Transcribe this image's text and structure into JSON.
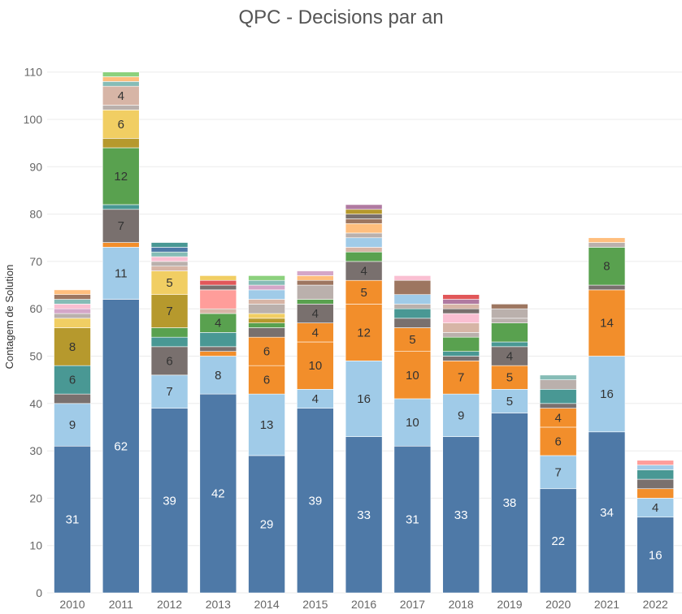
{
  "chart_data": {
    "type": "bar",
    "stacked": true,
    "title": "QPC - Decisions par an",
    "xlabel": "",
    "ylabel": "Contagem de Solution",
    "ylim": [
      0,
      112
    ],
    "yticks": [
      0,
      10,
      20,
      30,
      40,
      50,
      60,
      70,
      80,
      90,
      100,
      110
    ],
    "grid": true,
    "legend": "none",
    "categories": [
      "2010",
      "2011",
      "2012",
      "2013",
      "2014",
      "2015",
      "2016",
      "2017",
      "2018",
      "2019",
      "2020",
      "2021",
      "2022"
    ],
    "stacks": [
      [
        {
          "value": 31,
          "color": "#4e79a7",
          "label": "31"
        },
        {
          "value": 9,
          "color": "#a0cbe8",
          "label": "9"
        },
        {
          "value": 2,
          "color": "#79706e"
        },
        {
          "value": 6,
          "color": "#499894",
          "label": "6"
        },
        {
          "value": 8,
          "color": "#b6992d",
          "label": "8"
        },
        {
          "value": 2,
          "color": "#f1ce63"
        },
        {
          "value": 1,
          "color": "#bab0ac"
        },
        {
          "value": 1,
          "color": "#d4a6c8"
        },
        {
          "value": 1,
          "color": "#fabfd2"
        },
        {
          "value": 1,
          "color": "#86bcb6"
        },
        {
          "value": 1,
          "color": "#9d7660"
        },
        {
          "value": 1,
          "color": "#ffbe7d"
        }
      ],
      [
        {
          "value": 62,
          "color": "#4e79a7",
          "label": "62"
        },
        {
          "value": 11,
          "color": "#a0cbe8",
          "label": "11"
        },
        {
          "value": 1,
          "color": "#f28e2b"
        },
        {
          "value": 7,
          "color": "#79706e",
          "label": "7"
        },
        {
          "value": 1,
          "color": "#499894"
        },
        {
          "value": 12,
          "color": "#59a14f",
          "label": "12"
        },
        {
          "value": 2,
          "color": "#b6992d"
        },
        {
          "value": 6,
          "color": "#f1ce63",
          "label": "6"
        },
        {
          "value": 1,
          "color": "#bab0ac"
        },
        {
          "value": 4,
          "color": "#d7b5a6",
          "label": "4"
        },
        {
          "value": 1,
          "color": "#86bcb6"
        },
        {
          "value": 1,
          "color": "#ffbe7d"
        },
        {
          "value": 1,
          "color": "#8cd17d"
        }
      ],
      [
        {
          "value": 39,
          "color": "#4e79a7",
          "label": "39"
        },
        {
          "value": 7,
          "color": "#a0cbe8",
          "label": "7"
        },
        {
          "value": 6,
          "color": "#79706e",
          "label": "6"
        },
        {
          "value": 2,
          "color": "#499894"
        },
        {
          "value": 2,
          "color": "#59a14f"
        },
        {
          "value": 7,
          "color": "#b6992d",
          "label": "7"
        },
        {
          "value": 5,
          "color": "#f1ce63",
          "label": "5"
        },
        {
          "value": 1,
          "color": "#d7b5a6"
        },
        {
          "value": 1,
          "color": "#bab0ac"
        },
        {
          "value": 1,
          "color": "#fabfd2"
        },
        {
          "value": 1,
          "color": "#86bcb6"
        },
        {
          "value": 1,
          "color": "#4e79a7"
        },
        {
          "value": 1,
          "color": "#499894"
        }
      ],
      [
        {
          "value": 42,
          "color": "#4e79a7",
          "label": "42"
        },
        {
          "value": 8,
          "color": "#a0cbe8",
          "label": "8"
        },
        {
          "value": 1,
          "color": "#f28e2b"
        },
        {
          "value": 1,
          "color": "#79706e"
        },
        {
          "value": 3,
          "color": "#499894"
        },
        {
          "value": 4,
          "color": "#59a14f",
          "label": "4"
        },
        {
          "value": 1,
          "color": "#d7b5a6"
        },
        {
          "value": 4,
          "color": "#ff9d9a"
        },
        {
          "value": 1,
          "color": "#79706e"
        },
        {
          "value": 1,
          "color": "#e15759"
        },
        {
          "value": 1,
          "color": "#f1ce63"
        }
      ],
      [
        {
          "value": 29,
          "color": "#4e79a7",
          "label": "29"
        },
        {
          "value": 13,
          "color": "#a0cbe8",
          "label": "13"
        },
        {
          "value": 6,
          "color": "#f28e2b",
          "label": "6"
        },
        {
          "value": 6,
          "color": "#f28e2b",
          "label": "6"
        },
        {
          "value": 2,
          "color": "#79706e"
        },
        {
          "value": 1,
          "color": "#59a14f"
        },
        {
          "value": 1,
          "color": "#b6992d"
        },
        {
          "value": 1,
          "color": "#f1ce63"
        },
        {
          "value": 2,
          "color": "#bab0ac"
        },
        {
          "value": 1,
          "color": "#d7b5a6"
        },
        {
          "value": 2,
          "color": "#a0cbe8"
        },
        {
          "value": 1,
          "color": "#d4a6c8"
        },
        {
          "value": 1,
          "color": "#86bcb6"
        },
        {
          "value": 1,
          "color": "#8cd17d"
        }
      ],
      [
        {
          "value": 39,
          "color": "#4e79a7",
          "label": "39"
        },
        {
          "value": 4,
          "color": "#a0cbe8",
          "label": "4"
        },
        {
          "value": 10,
          "color": "#f28e2b",
          "label": "10"
        },
        {
          "value": 4,
          "color": "#f28e2b",
          "label": "4"
        },
        {
          "value": 4,
          "color": "#79706e",
          "label": "4"
        },
        {
          "value": 1,
          "color": "#59a14f"
        },
        {
          "value": 3,
          "color": "#bab0ac"
        },
        {
          "value": 1,
          "color": "#9d7660"
        },
        {
          "value": 1,
          "color": "#ffbe7d"
        },
        {
          "value": 1,
          "color": "#d4a6c8"
        }
      ],
      [
        {
          "value": 33,
          "color": "#4e79a7",
          "label": "33"
        },
        {
          "value": 16,
          "color": "#a0cbe8",
          "label": "16"
        },
        {
          "value": 12,
          "color": "#f28e2b",
          "label": "12"
        },
        {
          "value": 5,
          "color": "#f28e2b",
          "label": "5"
        },
        {
          "value": 4,
          "color": "#79706e",
          "label": "4"
        },
        {
          "value": 2,
          "color": "#59a14f"
        },
        {
          "value": 1,
          "color": "#d7b5a6"
        },
        {
          "value": 2,
          "color": "#a0cbe8"
        },
        {
          "value": 1,
          "color": "#bab0ac"
        },
        {
          "value": 2,
          "color": "#ffbe7d"
        },
        {
          "value": 1,
          "color": "#9d7660"
        },
        {
          "value": 1,
          "color": "#79706e"
        },
        {
          "value": 1,
          "color": "#b6992d"
        },
        {
          "value": 1,
          "color": "#b07aa1"
        }
      ],
      [
        {
          "value": 31,
          "color": "#4e79a7",
          "label": "31"
        },
        {
          "value": 10,
          "color": "#a0cbe8",
          "label": "10"
        },
        {
          "value": 10,
          "color": "#f28e2b",
          "label": "10"
        },
        {
          "value": 5,
          "color": "#f28e2b",
          "label": "5"
        },
        {
          "value": 2,
          "color": "#79706e"
        },
        {
          "value": 2,
          "color": "#499894"
        },
        {
          "value": 1,
          "color": "#bab0ac"
        },
        {
          "value": 2,
          "color": "#a0cbe8"
        },
        {
          "value": 3,
          "color": "#9d7660"
        },
        {
          "value": 1,
          "color": "#fabfd2"
        }
      ],
      [
        {
          "value": 33,
          "color": "#4e79a7",
          "label": "33"
        },
        {
          "value": 9,
          "color": "#a0cbe8",
          "label": "9"
        },
        {
          "value": 7,
          "color": "#f28e2b",
          "label": "7"
        },
        {
          "value": 1,
          "color": "#79706e"
        },
        {
          "value": 1,
          "color": "#499894"
        },
        {
          "value": 3,
          "color": "#59a14f"
        },
        {
          "value": 1,
          "color": "#bab0ac"
        },
        {
          "value": 2,
          "color": "#d7b5a6"
        },
        {
          "value": 2,
          "color": "#fabfd2"
        },
        {
          "value": 1,
          "color": "#79706e"
        },
        {
          "value": 1,
          "color": "#d7b5a6"
        },
        {
          "value": 1,
          "color": "#b07aa1"
        },
        {
          "value": 1,
          "color": "#e15759"
        }
      ],
      [
        {
          "value": 38,
          "color": "#4e79a7",
          "label": "38"
        },
        {
          "value": 5,
          "color": "#a0cbe8",
          "label": "5"
        },
        {
          "value": 5,
          "color": "#f28e2b",
          "label": "5"
        },
        {
          "value": 4,
          "color": "#79706e",
          "label": "4"
        },
        {
          "value": 1,
          "color": "#499894"
        },
        {
          "value": 4,
          "color": "#59a14f"
        },
        {
          "value": 1,
          "color": "#bab0ac"
        },
        {
          "value": 2,
          "color": "#bab0ac"
        },
        {
          "value": 1,
          "color": "#9d7660"
        }
      ],
      [
        {
          "value": 22,
          "color": "#4e79a7",
          "label": "22"
        },
        {
          "value": 7,
          "color": "#a0cbe8",
          "label": "7"
        },
        {
          "value": 6,
          "color": "#f28e2b",
          "label": "6"
        },
        {
          "value": 4,
          "color": "#f28e2b",
          "label": "4"
        },
        {
          "value": 1,
          "color": "#79706e"
        },
        {
          "value": 3,
          "color": "#499894"
        },
        {
          "value": 2,
          "color": "#bab0ac"
        },
        {
          "value": 1,
          "color": "#86bcb6"
        }
      ],
      [
        {
          "value": 34,
          "color": "#4e79a7",
          "label": "34"
        },
        {
          "value": 16,
          "color": "#a0cbe8",
          "label": "16"
        },
        {
          "value": 14,
          "color": "#f28e2b",
          "label": "14"
        },
        {
          "value": 1,
          "color": "#79706e"
        },
        {
          "value": 8,
          "color": "#59a14f",
          "label": "8"
        },
        {
          "value": 1,
          "color": "#bab0ac"
        },
        {
          "value": 1,
          "color": "#ffbe7d"
        }
      ],
      [
        {
          "value": 16,
          "color": "#4e79a7",
          "label": "16"
        },
        {
          "value": 4,
          "color": "#a0cbe8",
          "label": "4"
        },
        {
          "value": 2,
          "color": "#f28e2b"
        },
        {
          "value": 2,
          "color": "#79706e"
        },
        {
          "value": 2,
          "color": "#499894"
        },
        {
          "value": 1,
          "color": "#a0cbe8"
        },
        {
          "value": 1,
          "color": "#ff9d9a"
        }
      ]
    ]
  }
}
